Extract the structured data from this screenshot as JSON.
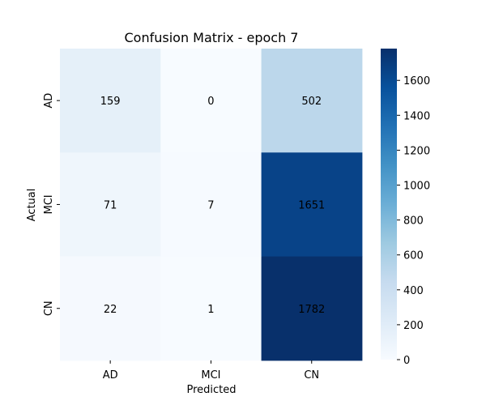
{
  "chart_data": {
    "type": "heatmap",
    "title": "Confusion Matrix - epoch 7",
    "xlabel": "Predicted",
    "ylabel": "Actual",
    "x_categories": [
      "AD",
      "MCI",
      "CN"
    ],
    "y_categories": [
      "AD",
      "MCI",
      "CN"
    ],
    "values": [
      [
        159,
        0,
        502
      ],
      [
        71,
        7,
        1651
      ],
      [
        22,
        1,
        1782
      ]
    ],
    "colorbar": {
      "ticks": [
        0,
        200,
        400,
        600,
        800,
        1000,
        1200,
        1400,
        1600
      ],
      "range": [
        0,
        1782
      ],
      "colormap": "Blues"
    }
  }
}
